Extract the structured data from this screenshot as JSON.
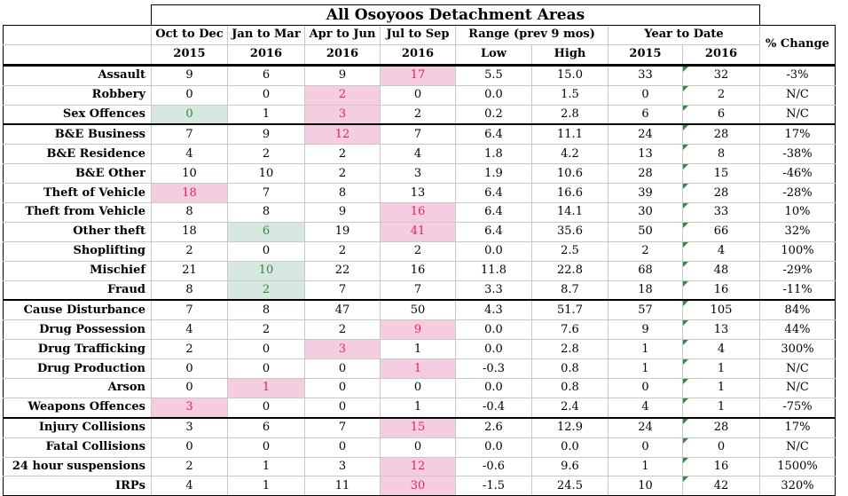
{
  "title": "All Osoyoos Detachment Areas",
  "headers": {
    "q1_top": "Oct to Dec",
    "q1_bot": "2015",
    "q2_top": "Jan to Mar",
    "q2_bot": "2016",
    "q3_top": "Apr to Jun",
    "q3_bot": "2016",
    "q4_top": "Jul to Sep",
    "q4_bot": "2016",
    "range_top": "Range (prev 9 mos)",
    "low": "Low",
    "high": "High",
    "ytd_top": "Year to Date",
    "ytd_2015": "2015",
    "ytd_2016": "2016",
    "pct": "% Change"
  },
  "highlight_colors": {
    "high": "#e0245e",
    "low": "#2f8a3a"
  },
  "rows": [
    {
      "name": "Assault",
      "v": [
        "9",
        "6",
        "9",
        "17",
        "5.5",
        "15.0",
        "33",
        "32",
        "-3%"
      ],
      "hl": [
        "",
        "",
        "",
        "r",
        "",
        "",
        "",
        "",
        ""
      ]
    },
    {
      "name": "Robbery",
      "v": [
        "0",
        "0",
        "2",
        "0",
        "0.0",
        "1.5",
        "0",
        "2",
        "N/C"
      ],
      "hl": [
        "",
        "",
        "r",
        "",
        "",
        "",
        "",
        "",
        ""
      ]
    },
    {
      "name": "Sex Offences",
      "v": [
        "0",
        "1",
        "3",
        "2",
        "0.2",
        "2.8",
        "6",
        "6",
        "N/C"
      ],
      "hl": [
        "g",
        "",
        "r",
        "",
        "",
        "",
        "",
        "",
        ""
      ]
    },
    {
      "name": "B&E Business",
      "v": [
        "7",
        "9",
        "12",
        "7",
        "6.4",
        "11.1",
        "24",
        "28",
        "17%"
      ],
      "hl": [
        "",
        "",
        "r",
        "",
        "",
        "",
        "",
        "",
        ""
      ]
    },
    {
      "name": "B&E Residence",
      "v": [
        "4",
        "2",
        "2",
        "4",
        "1.8",
        "4.2",
        "13",
        "8",
        "-38%"
      ],
      "hl": [
        "",
        "",
        "",
        "",
        "",
        "",
        "",
        "",
        ""
      ]
    },
    {
      "name": "B&E Other",
      "v": [
        "10",
        "10",
        "2",
        "3",
        "1.9",
        "10.6",
        "28",
        "15",
        "-46%"
      ],
      "hl": [
        "",
        "",
        "",
        "",
        "",
        "",
        "",
        "",
        ""
      ]
    },
    {
      "name": "Theft of Vehicle",
      "v": [
        "18",
        "7",
        "8",
        "13",
        "6.4",
        "16.6",
        "39",
        "28",
        "-28%"
      ],
      "hl": [
        "r",
        "",
        "",
        "",
        "",
        "",
        "",
        "",
        ""
      ]
    },
    {
      "name": "Theft from Vehicle",
      "v": [
        "8",
        "8",
        "9",
        "16",
        "6.4",
        "14.1",
        "30",
        "33",
        "10%"
      ],
      "hl": [
        "",
        "",
        "",
        "r",
        "",
        "",
        "",
        "",
        ""
      ]
    },
    {
      "name": "Other theft",
      "v": [
        "18",
        "6",
        "19",
        "41",
        "6.4",
        "35.6",
        "50",
        "66",
        "32%"
      ],
      "hl": [
        "",
        "g",
        "",
        "r",
        "",
        "",
        "",
        "",
        ""
      ]
    },
    {
      "name": "Shoplifting",
      "v": [
        "2",
        "0",
        "2",
        "2",
        "0.0",
        "2.5",
        "2",
        "4",
        "100%"
      ],
      "hl": [
        "",
        "",
        "",
        "",
        "",
        "",
        "",
        "",
        ""
      ]
    },
    {
      "name": "Mischief",
      "v": [
        "21",
        "10",
        "22",
        "16",
        "11.8",
        "22.8",
        "68",
        "48",
        "-29%"
      ],
      "hl": [
        "",
        "g",
        "",
        "",
        "",
        "",
        "",
        "",
        ""
      ]
    },
    {
      "name": "Fraud",
      "v": [
        "8",
        "2",
        "7",
        "7",
        "3.3",
        "8.7",
        "18",
        "16",
        "-11%"
      ],
      "hl": [
        "",
        "g",
        "",
        "",
        "",
        "",
        "",
        "",
        ""
      ]
    },
    {
      "name": "Cause Disturbance",
      "v": [
        "7",
        "8",
        "47",
        "50",
        "4.3",
        "51.7",
        "57",
        "105",
        "84%"
      ],
      "hl": [
        "",
        "",
        "",
        "",
        "",
        "",
        "",
        "",
        ""
      ]
    },
    {
      "name": "Drug Possession",
      "v": [
        "4",
        "2",
        "2",
        "9",
        "0.0",
        "7.6",
        "9",
        "13",
        "44%"
      ],
      "hl": [
        "",
        "",
        "",
        "r",
        "",
        "",
        "",
        "",
        ""
      ]
    },
    {
      "name": "Drug Trafficking",
      "v": [
        "2",
        "0",
        "3",
        "1",
        "0.0",
        "2.8",
        "1",
        "4",
        "300%"
      ],
      "hl": [
        "",
        "",
        "r",
        "",
        "",
        "",
        "",
        "",
        ""
      ]
    },
    {
      "name": "Drug Production",
      "v": [
        "0",
        "0",
        "0",
        "1",
        "-0.3",
        "0.8",
        "1",
        "1",
        "N/C"
      ],
      "hl": [
        "",
        "",
        "",
        "r",
        "",
        "",
        "",
        "",
        ""
      ]
    },
    {
      "name": "Arson",
      "v": [
        "0",
        "1",
        "0",
        "0",
        "0.0",
        "0.8",
        "0",
        "1",
        "N/C"
      ],
      "hl": [
        "",
        "r",
        "",
        "",
        "",
        "",
        "",
        "",
        ""
      ]
    },
    {
      "name": "Weapons Offences",
      "v": [
        "3",
        "0",
        "0",
        "1",
        "-0.4",
        "2.4",
        "4",
        "1",
        "-75%"
      ],
      "hl": [
        "r",
        "",
        "",
        "",
        "",
        "",
        "",
        "",
        ""
      ]
    },
    {
      "name": "Injury Collisions",
      "v": [
        "3",
        "6",
        "7",
        "15",
        "2.6",
        "12.9",
        "24",
        "28",
        "17%"
      ],
      "hl": [
        "",
        "",
        "",
        "r",
        "",
        "",
        "",
        "",
        ""
      ]
    },
    {
      "name": "Fatal Collisions",
      "v": [
        "0",
        "0",
        "0",
        "0",
        "0.0",
        "0.0",
        "0",
        "0",
        "N/C"
      ],
      "hl": [
        "",
        "",
        "",
        "",
        "",
        "",
        "",
        "",
        ""
      ]
    },
    {
      "name": "24 hour suspensions",
      "v": [
        "2",
        "1",
        "3",
        "12",
        "-0.6",
        "9.6",
        "1",
        "16",
        "1500%"
      ],
      "hl": [
        "",
        "",
        "",
        "r",
        "",
        "",
        "",
        "",
        ""
      ]
    },
    {
      "name": "IRPs",
      "v": [
        "4",
        "1",
        "11",
        "30",
        "-1.5",
        "24.5",
        "10",
        "42",
        "320%"
      ],
      "hl": [
        "",
        "",
        "",
        "r",
        "",
        "",
        "",
        "",
        ""
      ]
    }
  ]
}
